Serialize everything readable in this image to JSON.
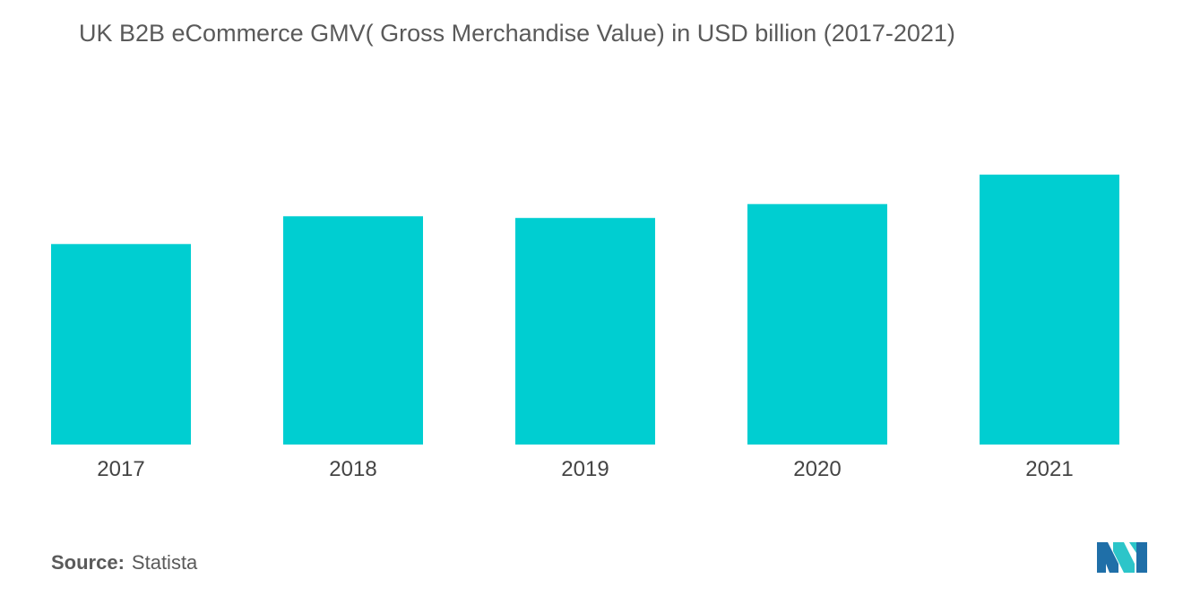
{
  "chart_data": {
    "type": "bar",
    "title": "UK B2B eCommerce GMV( Gross Merchandise Value)  in USD billion (2017-2021)",
    "categories": [
      "2017",
      "2018",
      "2019",
      "2020",
      "2021"
    ],
    "values": [
      231,
      263,
      261,
      277,
      311
    ],
    "xlabel": "",
    "ylabel": "",
    "ylim": [
      0,
      380
    ],
    "grid": false,
    "bar_color": "#00ced1"
  },
  "source": {
    "label": "Source:",
    "value": "Statista"
  },
  "logo": {
    "colors": [
      "#1f6fa8",
      "#2cc5c9"
    ]
  }
}
